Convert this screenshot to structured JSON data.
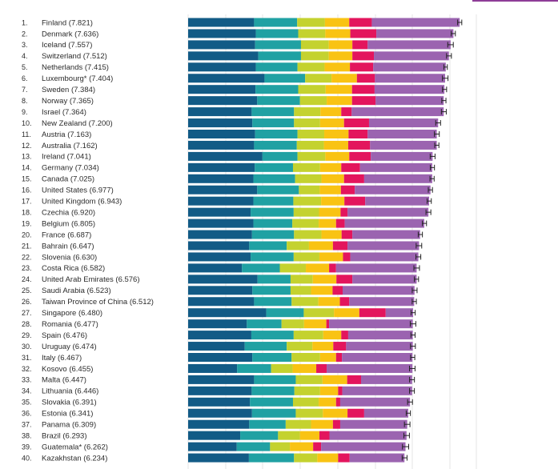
{
  "chart_data": {
    "type": "bar",
    "stacked": true,
    "orientation": "horizontal",
    "title": "",
    "xlabel": "",
    "ylabel": "",
    "grid": true,
    "legend": "none",
    "segment_colors": [
      "#125b86",
      "#20a1a3",
      "#c4d22f",
      "#f9c313",
      "#e3155d",
      "#9b64b0"
    ],
    "error_color": "#222222",
    "scale_max": 8.6,
    "rows": [
      {
        "rank": "1.",
        "label": "Finland (7.821)",
        "score": 7.821,
        "parts": [
          1.9,
          1.24,
          0.8,
          0.7,
          0.65,
          2.53
        ],
        "err": 0.06
      },
      {
        "rank": "2.",
        "label": "Denmark (7.636)",
        "score": 7.636,
        "parts": [
          1.95,
          1.22,
          0.78,
          0.72,
          0.75,
          2.22
        ],
        "err": 0.06
      },
      {
        "rank": "3.",
        "label": "Iceland (7.557)",
        "score": 7.557,
        "parts": [
          1.93,
          1.32,
          0.8,
          0.68,
          0.44,
          2.39
        ],
        "err": 0.08
      },
      {
        "rank": "4.",
        "label": "Switzerland (7.512)",
        "score": 7.512,
        "parts": [
          2.02,
          1.23,
          0.8,
          0.68,
          0.62,
          2.16
        ],
        "err": 0.07
      },
      {
        "rank": "5.",
        "label": "Netherlands (7.415)",
        "score": 7.415,
        "parts": [
          1.95,
          1.2,
          0.78,
          0.73,
          0.67,
          2.09
        ],
        "err": 0.05
      },
      {
        "rank": "6.",
        "label": "Luxembourg* (7.404)",
        "score": 7.404,
        "parts": [
          2.2,
          1.17,
          0.76,
          0.73,
          0.52,
          2.02
        ],
        "err": 0.08
      },
      {
        "rank": "7.",
        "label": "Sweden (7.384)",
        "score": 7.384,
        "parts": [
          1.94,
          1.23,
          0.79,
          0.76,
          0.65,
          2.01
        ],
        "err": 0.06
      },
      {
        "rank": "8.",
        "label": "Norway (7.365)",
        "score": 7.365,
        "parts": [
          1.99,
          1.23,
          0.77,
          0.73,
          0.68,
          1.96
        ],
        "err": 0.06
      },
      {
        "rank": "9.",
        "label": "Israel (7.364)",
        "score": 7.364,
        "parts": [
          1.83,
          1.22,
          0.76,
          0.6,
          0.3,
          2.65
        ],
        "err": 0.07
      },
      {
        "rank": "10.",
        "label": "New Zealand (7.200)",
        "score": 7.2,
        "parts": [
          1.85,
          1.2,
          0.75,
          0.69,
          0.72,
          1.99
        ],
        "err": 0.07
      },
      {
        "rank": "11.",
        "label": "Austria (7.163)",
        "score": 7.163,
        "parts": [
          1.93,
          1.22,
          0.77,
          0.7,
          0.55,
          1.99
        ],
        "err": 0.07
      },
      {
        "rank": "12.",
        "label": "Australia (7.162)",
        "score": 7.162,
        "parts": [
          1.9,
          1.23,
          0.78,
          0.7,
          0.63,
          1.92
        ],
        "err": 0.06
      },
      {
        "rank": "13.",
        "label": "Ireland (7.041)",
        "score": 7.041,
        "parts": [
          2.14,
          1.01,
          0.8,
          0.69,
          0.62,
          1.78
        ],
        "err": 0.07
      },
      {
        "rank": "14.",
        "label": "Germany (7.034)",
        "score": 7.034,
        "parts": [
          1.92,
          1.1,
          0.78,
          0.61,
          0.54,
          2.08
        ],
        "err": 0.06
      },
      {
        "rank": "15.",
        "label": "Canada (7.025)",
        "score": 7.025,
        "parts": [
          1.88,
          1.2,
          0.76,
          0.65,
          0.58,
          1.96
        ],
        "err": 0.06
      },
      {
        "rank": "16.",
        "label": "United States (6.977)",
        "score": 6.977,
        "parts": [
          1.99,
          1.2,
          0.6,
          0.61,
          0.4,
          2.18
        ],
        "err": 0.06
      },
      {
        "rank": "17.",
        "label": "United Kingdom (6.943)",
        "score": 6.943,
        "parts": [
          1.88,
          1.15,
          0.8,
          0.67,
          0.6,
          1.84
        ],
        "err": 0.06
      },
      {
        "rank": "18.",
        "label": "Czechia (6.920)",
        "score": 6.92,
        "parts": [
          1.8,
          1.24,
          0.73,
          0.62,
          0.2,
          2.33
        ],
        "err": 0.07
      },
      {
        "rank": "19.",
        "label": "Belgium (6.805)",
        "score": 6.805,
        "parts": [
          1.88,
          1.12,
          0.76,
          0.5,
          0.25,
          2.29
        ],
        "err": 0.06
      },
      {
        "rank": "20.",
        "label": "France (6.687)",
        "score": 6.687,
        "parts": [
          1.84,
          1.21,
          0.79,
          0.58,
          0.31,
          1.95
        ],
        "err": 0.06
      },
      {
        "rank": "21.",
        "label": "Bahrain (6.647)",
        "score": 6.647,
        "parts": [
          1.76,
          1.08,
          0.64,
          0.69,
          0.42,
          2.06
        ],
        "err": 0.08
      },
      {
        "rank": "22.",
        "label": "Slovenia (6.630)",
        "score": 6.63,
        "parts": [
          1.8,
          1.24,
          0.74,
          0.68,
          0.21,
          1.96
        ],
        "err": 0.07
      },
      {
        "rank": "23.",
        "label": "Costa Rica (6.582)",
        "score": 6.582,
        "parts": [
          1.55,
          1.09,
          0.75,
          0.67,
          0.2,
          2.32
        ],
        "err": 0.08
      },
      {
        "rank": "24.",
        "label": "United Arab Emirates (6.576)",
        "score": 6.576,
        "parts": [
          2.0,
          0.95,
          0.64,
          0.68,
          0.46,
          1.85
        ],
        "err": 0.06
      },
      {
        "rank": "25.",
        "label": "Saudi Arabia (6.523)",
        "score": 6.523,
        "parts": [
          1.85,
          1.1,
          0.59,
          0.62,
          0.29,
          2.07
        ],
        "err": 0.07
      },
      {
        "rank": "26.",
        "label": "Taiwan Province of China (6.512)",
        "score": 6.512,
        "parts": [
          1.9,
          1.08,
          0.77,
          0.62,
          0.27,
          1.87
        ],
        "err": 0.06
      },
      {
        "rank": "27.",
        "label": "Singapore (6.480)",
        "score": 6.48,
        "parts": [
          2.25,
          1.08,
          0.87,
          0.73,
          0.76,
          0.79
        ],
        "err": 0.06
      },
      {
        "rank": "28.",
        "label": "Romania (6.477)",
        "score": 6.477,
        "parts": [
          1.69,
          1.0,
          0.65,
          0.64,
          0.08,
          2.41
        ],
        "err": 0.08
      },
      {
        "rank": "29.",
        "label": "Spain (6.476)",
        "score": 6.476,
        "parts": [
          1.82,
          1.22,
          0.85,
          0.52,
          0.2,
          1.86
        ],
        "err": 0.06
      },
      {
        "rank": "30.",
        "label": "Uruguay (6.474)",
        "score": 6.474,
        "parts": [
          1.63,
          1.21,
          0.74,
          0.6,
          0.37,
          1.92
        ],
        "err": 0.07
      },
      {
        "rank": "31.",
        "label": "Italy (6.467)",
        "score": 6.467,
        "parts": [
          1.85,
          1.13,
          0.82,
          0.46,
          0.17,
          2.03
        ],
        "err": 0.06
      },
      {
        "rank": "32.",
        "label": "Kosovo (6.455)",
        "score": 6.455,
        "parts": [
          1.41,
          0.98,
          0.62,
          0.68,
          0.3,
          2.47
        ],
        "err": 0.08
      },
      {
        "rank": "33.",
        "label": "Malta (6.447)",
        "score": 6.447,
        "parts": [
          1.9,
          1.2,
          0.77,
          0.71,
          0.4,
          1.47
        ],
        "err": 0.07
      },
      {
        "rank": "34.",
        "label": "Lithuania (6.446)",
        "score": 6.446,
        "parts": [
          1.83,
          1.23,
          0.74,
          0.52,
          0.12,
          2.01
        ],
        "err": 0.07
      },
      {
        "rank": "35.",
        "label": "Slovakia (6.391)",
        "score": 6.391,
        "parts": [
          1.78,
          1.24,
          0.74,
          0.5,
          0.12,
          2.01
        ],
        "err": 0.07
      },
      {
        "rank": "36.",
        "label": "Estonia (6.341)",
        "score": 6.341,
        "parts": [
          1.84,
          1.26,
          0.78,
          0.71,
          0.48,
          1.27
        ],
        "err": 0.06
      },
      {
        "rank": "37.",
        "label": "Panama (6.309)",
        "score": 6.309,
        "parts": [
          1.76,
          1.05,
          0.73,
          0.63,
          0.21,
          1.93
        ],
        "err": 0.08
      },
      {
        "rank": "38.",
        "label": "Brazil (6.293)",
        "score": 6.293,
        "parts": [
          1.5,
          1.09,
          0.63,
          0.56,
          0.29,
          2.22
        ],
        "err": 0.08
      },
      {
        "rank": "39.",
        "label": "Guatemala* (6.262)",
        "score": 6.262,
        "parts": [
          1.4,
          0.96,
          0.57,
          0.67,
          0.23,
          2.43
        ],
        "err": 0.09
      },
      {
        "rank": "40.",
        "label": "Kazakhstan (6.234)",
        "score": 6.234,
        "parts": [
          1.75,
          1.3,
          0.67,
          0.6,
          0.33,
          1.58
        ],
        "err": 0.07
      }
    ]
  }
}
